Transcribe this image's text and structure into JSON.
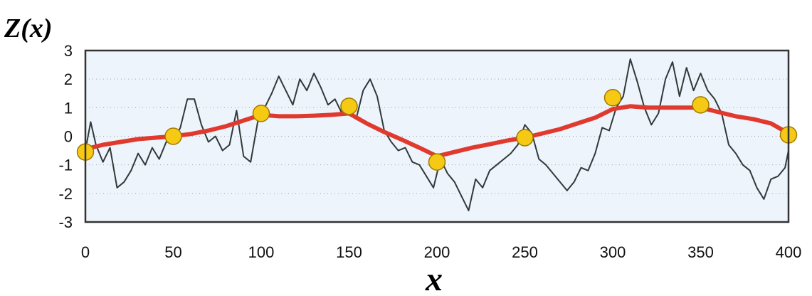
{
  "chart_data": {
    "type": "line",
    "xlabel": "x",
    "ylabel": "Z(x)",
    "xlim": [
      0,
      400
    ],
    "ylim": [
      -3,
      3
    ],
    "x_ticks": [
      0,
      50,
      100,
      150,
      200,
      250,
      300,
      350,
      400
    ],
    "y_ticks": [
      3,
      2,
      1,
      0,
      -1,
      -2,
      -3
    ],
    "grid": "horizontal dotted",
    "colors": {
      "plot_background": "#eef4fb",
      "noisy_series": "#2f3a3a",
      "smooth_series": "#e03a2f",
      "markers": "#f6c915",
      "marker_outline": "#a07a00",
      "frame": "#333333"
    },
    "series": [
      {
        "style": "noisy",
        "x": [
          0,
          3,
          6,
          10,
          14,
          18,
          22,
          26,
          30,
          34,
          38,
          42,
          46,
          50,
          54,
          58,
          62,
          66,
          70,
          74,
          78,
          82,
          86,
          90,
          94,
          98,
          102,
          106,
          110,
          114,
          118,
          122,
          126,
          130,
          134,
          138,
          142,
          146,
          150,
          154,
          158,
          162,
          166,
          170,
          174,
          178,
          182,
          186,
          190,
          194,
          198,
          202,
          206,
          210,
          214,
          218,
          222,
          226,
          230,
          234,
          238,
          242,
          246,
          250,
          254,
          258,
          262,
          266,
          270,
          274,
          278,
          282,
          286,
          290,
          294,
          298,
          302,
          306,
          310,
          314,
          318,
          322,
          326,
          330,
          334,
          338,
          342,
          346,
          350,
          354,
          358,
          362,
          366,
          370,
          374,
          378,
          382,
          386,
          390,
          394,
          398,
          400
        ],
        "values": [
          -0.5,
          0.5,
          -0.3,
          -0.9,
          -0.4,
          -1.8,
          -1.6,
          -1.2,
          -0.6,
          -1.0,
          -0.4,
          -0.8,
          -0.2,
          -0.2,
          0.3,
          1.3,
          1.3,
          0.4,
          -0.2,
          0.0,
          -0.5,
          -0.3,
          0.9,
          -0.7,
          -0.9,
          0.5,
          1.0,
          1.5,
          2.1,
          1.6,
          1.1,
          2.0,
          1.6,
          2.2,
          1.7,
          1.1,
          1.3,
          0.8,
          1.0,
          0.6,
          1.6,
          2.0,
          1.4,
          0.2,
          -0.2,
          -0.5,
          -0.4,
          -0.9,
          -1.0,
          -1.4,
          -1.8,
          -0.8,
          -1.3,
          -1.6,
          -2.1,
          -2.6,
          -1.5,
          -1.8,
          -1.2,
          -1.0,
          -0.8,
          -0.6,
          -0.3,
          0.4,
          0.1,
          -0.8,
          -1.0,
          -1.3,
          -1.6,
          -1.9,
          -1.6,
          -1.1,
          -1.2,
          -0.6,
          0.3,
          0.2,
          1.0,
          1.4,
          2.7,
          1.9,
          1.0,
          0.4,
          0.8,
          2.0,
          2.6,
          1.4,
          2.4,
          1.6,
          2.2,
          1.6,
          1.3,
          0.8,
          -0.3,
          -0.6,
          -1.0,
          -1.2,
          -1.8,
          -2.2,
          -1.5,
          -1.4,
          -1.1,
          -0.5
        ]
      },
      {
        "style": "smooth",
        "x": [
          0,
          10,
          20,
          30,
          40,
          50,
          60,
          70,
          80,
          90,
          100,
          110,
          120,
          130,
          140,
          150,
          160,
          170,
          180,
          190,
          200,
          210,
          220,
          230,
          240,
          250,
          260,
          270,
          280,
          290,
          300,
          310,
          320,
          330,
          340,
          350,
          360,
          370,
          380,
          390,
          400
        ],
        "values": [
          -0.45,
          -0.3,
          -0.2,
          -0.1,
          -0.05,
          0.0,
          0.08,
          0.2,
          0.35,
          0.55,
          0.75,
          0.7,
          0.7,
          0.72,
          0.75,
          0.8,
          0.45,
          0.15,
          -0.12,
          -0.4,
          -0.7,
          -0.55,
          -0.4,
          -0.28,
          -0.15,
          -0.05,
          0.1,
          0.25,
          0.45,
          0.65,
          0.95,
          1.05,
          1.0,
          1.0,
          1.0,
          1.0,
          0.85,
          0.7,
          0.6,
          0.45,
          0.1
        ]
      },
      {
        "style": "markers",
        "x": [
          0,
          50,
          100,
          150,
          200,
          250,
          300,
          350,
          400
        ],
        "values": [
          -0.55,
          0.0,
          0.8,
          1.05,
          -0.9,
          -0.05,
          1.35,
          1.1,
          0.05
        ]
      }
    ]
  }
}
